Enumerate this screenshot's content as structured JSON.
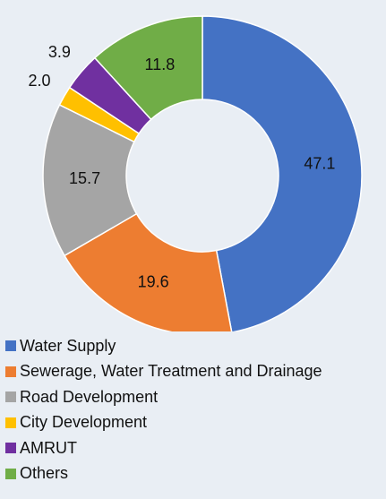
{
  "chart_data": {
    "type": "donut",
    "categories": [
      "Water Supply",
      "Sewerage, Water Treatment and Drainage",
      "Road Development",
      "City Development",
      "AMRUT",
      "Others"
    ],
    "values": [
      47.1,
      19.6,
      15.7,
      2.0,
      3.9,
      11.8
    ],
    "value_labels": [
      "47.1",
      "19.6",
      "15.7",
      "2.0",
      "3.9",
      "11.8"
    ],
    "colors": [
      "#4472c4",
      "#ed7d31",
      "#a5a5a5",
      "#ffc000",
      "#7030a0",
      "#70ad47"
    ],
    "legend": "bottom"
  }
}
